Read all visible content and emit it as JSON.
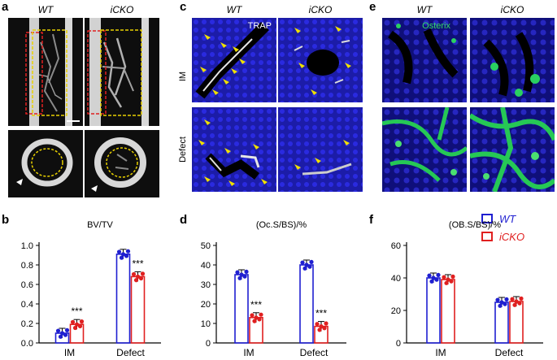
{
  "panels": {
    "a": {
      "letter": "a",
      "col1": "WT",
      "col2": "iCKO"
    },
    "c": {
      "letter": "c",
      "col1": "WT",
      "col2": "iCKO",
      "stain": "TRAP",
      "row1": "IM",
      "row2": "Defect"
    },
    "e": {
      "letter": "e",
      "col1": "WT",
      "col2": "iCKO",
      "stain": "Osterix"
    },
    "b": {
      "letter": "b"
    },
    "d": {
      "letter": "d"
    },
    "f": {
      "letter": "f"
    }
  },
  "legend": {
    "wt": "WT",
    "icko": "iCKO",
    "wt_color": "#1f1fd1",
    "icko_color": "#e02020"
  },
  "chart_data": [
    {
      "id": "b",
      "type": "bar",
      "title": "BV/TV",
      "categories": [
        "IM",
        "Defect"
      ],
      "series": [
        {
          "name": "WT",
          "values": [
            0.1,
            0.91
          ]
        },
        {
          "name": "iCKO",
          "values": [
            0.19,
            0.68
          ]
        }
      ],
      "ylim": [
        0,
        1.0
      ],
      "yticks": [
        "0.0",
        "0.2",
        "0.4",
        "0.6",
        "0.8",
        "1.0"
      ],
      "significance": [
        "***",
        "***"
      ]
    },
    {
      "id": "d",
      "type": "bar",
      "title": "(Oc.S/BS)/%",
      "categories": [
        "IM",
        "Defect"
      ],
      "series": [
        {
          "name": "WT",
          "values": [
            35,
            40
          ]
        },
        {
          "name": "iCKO",
          "values": [
            13,
            8.5
          ]
        }
      ],
      "ylim": [
        0,
        50
      ],
      "yticks": [
        "0",
        "10",
        "20",
        "30",
        "40",
        "50"
      ],
      "significance": [
        "***",
        "***"
      ]
    },
    {
      "id": "f",
      "type": "bar",
      "title": "(OB.S/BS)/%",
      "categories": [
        "IM",
        "Defect"
      ],
      "series": [
        {
          "name": "WT",
          "values": [
            40,
            25
          ]
        },
        {
          "name": "iCKO",
          "values": [
            39,
            25.5
          ]
        }
      ],
      "ylim": [
        0,
        60
      ],
      "yticks": [
        "0",
        "20",
        "40",
        "60"
      ],
      "significance": [
        "",
        ""
      ]
    }
  ]
}
